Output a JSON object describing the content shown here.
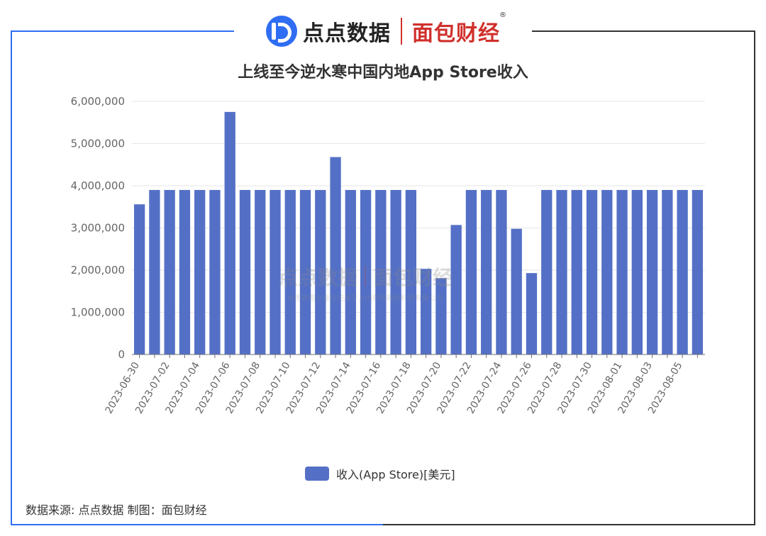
{
  "header": {
    "logo_left": "点点数据",
    "logo_right": "面包财经",
    "registered_mark": "®"
  },
  "chart_data": {
    "type": "bar",
    "title": "上线至今逆水寒中国内地App Store收入",
    "xlabel": "",
    "ylabel": "",
    "ylim": [
      0,
      6000000
    ],
    "yticks": [
      "0",
      "1,000,000",
      "2,000,000",
      "3,000,000",
      "4,000,000",
      "5,000,000",
      "6,000,000"
    ],
    "grid": true,
    "legend_position": "bottom",
    "categories": [
      "2023-06-30",
      "2023-07-01",
      "2023-07-02",
      "2023-07-03",
      "2023-07-04",
      "2023-07-05",
      "2023-07-06",
      "2023-07-07",
      "2023-07-08",
      "2023-07-09",
      "2023-07-10",
      "2023-07-11",
      "2023-07-12",
      "2023-07-13",
      "2023-07-14",
      "2023-07-15",
      "2023-07-16",
      "2023-07-17",
      "2023-07-18",
      "2023-07-19",
      "2023-07-20",
      "2023-07-21",
      "2023-07-22",
      "2023-07-23",
      "2023-07-24",
      "2023-07-25",
      "2023-07-26",
      "2023-07-27",
      "2023-07-28",
      "2023-07-29",
      "2023-07-30",
      "2023-07-31",
      "2023-08-01",
      "2023-08-02",
      "2023-08-03",
      "2023-08-04",
      "2023-08-05",
      "2023-08-06"
    ],
    "visible_x_labels": [
      "2023-06-30",
      "2023-07-02",
      "2023-07-04",
      "2023-07-06",
      "2023-07-08",
      "2023-07-10",
      "2023-07-12",
      "2023-07-14",
      "2023-07-16",
      "2023-07-18",
      "2023-07-20",
      "2023-07-22",
      "2023-07-24",
      "2023-07-26",
      "2023-07-28",
      "2023-07-30",
      "2023-08-01",
      "2023-08-03",
      "2023-08-05"
    ],
    "series": [
      {
        "name": "收入(App Store)[美元]",
        "color": "#5470c6",
        "values": [
          3560000,
          3900000,
          3900000,
          3900000,
          3900000,
          3900000,
          5750000,
          3900000,
          3900000,
          3900000,
          3900000,
          3900000,
          3900000,
          4680000,
          3900000,
          3900000,
          3900000,
          3900000,
          3900000,
          2030000,
          1810000,
          3070000,
          3900000,
          3900000,
          3900000,
          2980000,
          1930000,
          3900000,
          3900000,
          3900000,
          3900000,
          3900000,
          3900000,
          3900000,
          3900000,
          3900000,
          3900000,
          3900000
        ]
      }
    ]
  },
  "watermark": {
    "left": "点点数据",
    "right": "面包财经",
    "sub": "本图表图片版权归属于上海财闻网络科技有限公司"
  },
  "footer": {
    "source": "数据来源: 点点数据 制图：面包财经"
  },
  "colors": {
    "frame_left": "#2f6df2",
    "frame_right": "#333333",
    "bar": "#5470c6"
  }
}
